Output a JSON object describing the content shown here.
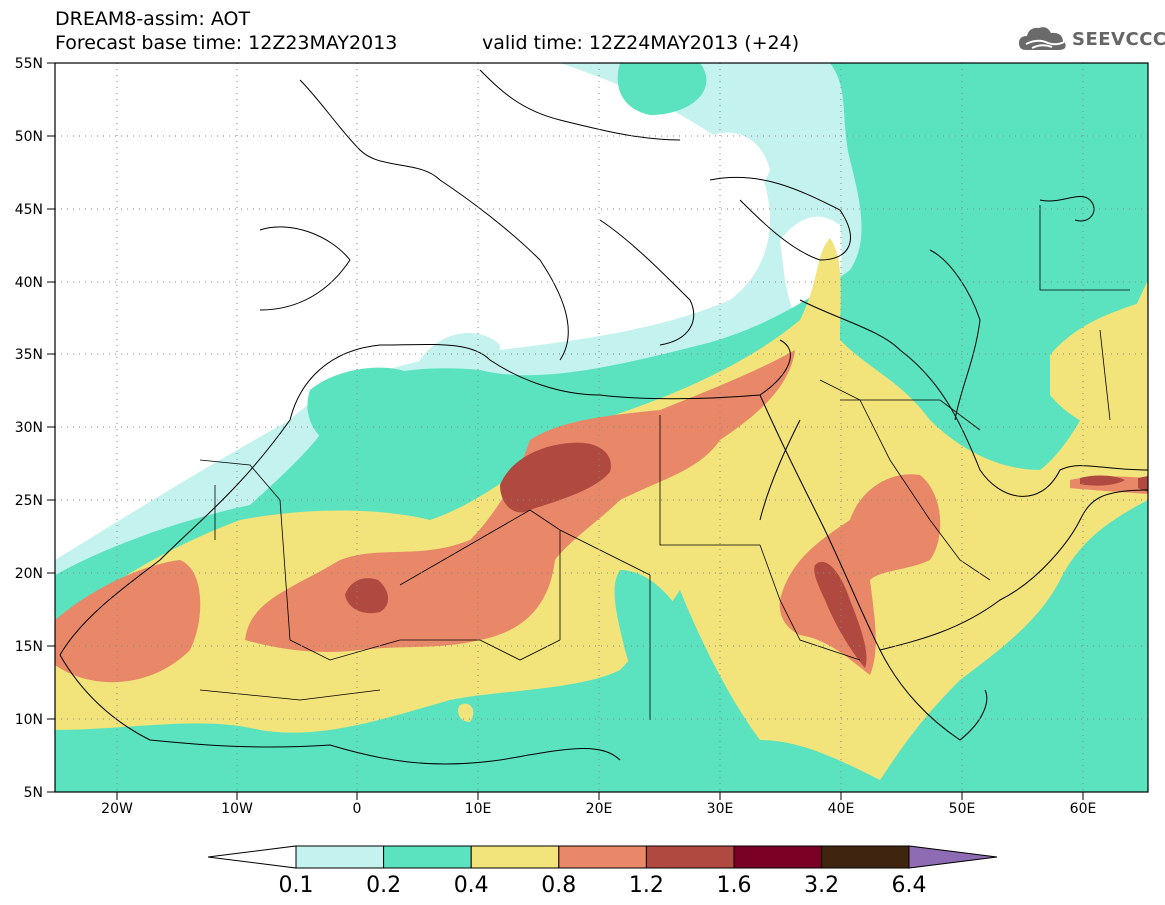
{
  "header": {
    "title": "DREAM8-assim: AOT",
    "base_time": "Forecast base time: 12Z23MAY2013",
    "valid_time": "valid time: 12Z24MAY2013 (+24)"
  },
  "logo": {
    "text": "SEEVCCC"
  },
  "map": {
    "lon_labels": [
      "20W",
      "10W",
      "0",
      "10E",
      "20E",
      "30E",
      "40E",
      "50E",
      "60E"
    ],
    "lat_labels": [
      "55N",
      "50N",
      "45N",
      "40N",
      "35N",
      "30N",
      "25N",
      "20N",
      "15N",
      "10N",
      "5N"
    ],
    "colors": {
      "c01": "#c4f2ee",
      "c02": "#5be3bf",
      "c04": "#f2e37a",
      "c08": "#e88868",
      "c12": "#b04a40",
      "c16": "#7a0026",
      "c32": "#3f2510",
      "c64": "#8e6bb2"
    }
  },
  "colorbar": {
    "labels": [
      "0.1",
      "0.2",
      "0.4",
      "0.8",
      "1.2",
      "1.6",
      "3.2",
      "6.4"
    ],
    "colors": [
      "#c4f2ee",
      "#5be3bf",
      "#f2e37a",
      "#e88868",
      "#b04a40",
      "#7a0026",
      "#3f2510"
    ],
    "under_color": "#ffffff",
    "over_color": "#8e6bb2"
  }
}
